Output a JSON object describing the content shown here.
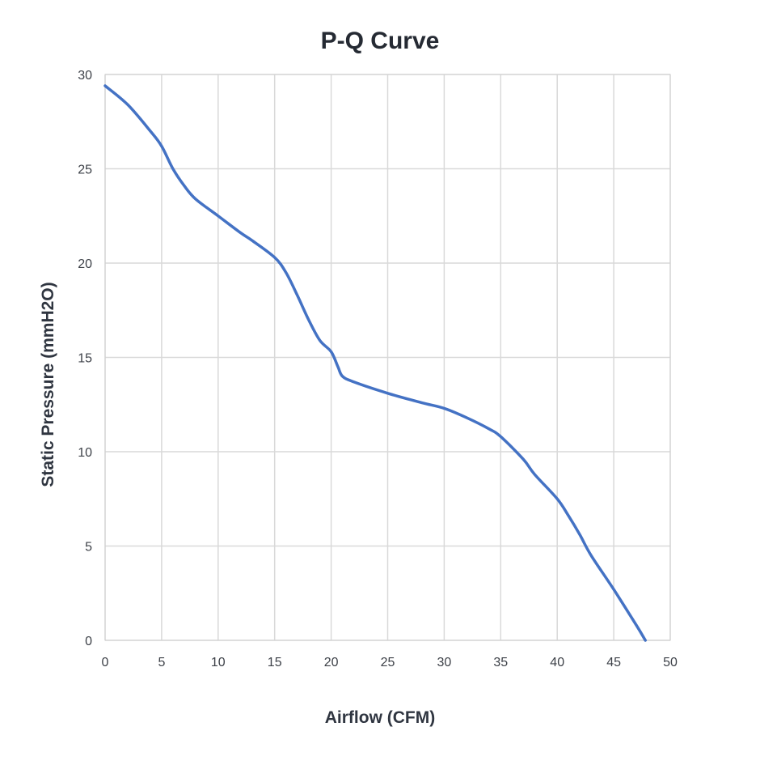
{
  "chart_data": {
    "type": "line",
    "title": "P-Q Curve",
    "xlabel": "Airflow (CFM)",
    "ylabel": "Static Pressure (mmH2O)",
    "xlim": [
      0,
      50
    ],
    "ylim": [
      0,
      30
    ],
    "xticks": [
      0,
      5,
      10,
      15,
      20,
      25,
      30,
      35,
      40,
      45,
      50
    ],
    "yticks": [
      0,
      5,
      10,
      15,
      20,
      25,
      30
    ],
    "x_tick_labels": [
      "0",
      "5",
      "10",
      "15",
      "20",
      "25",
      "30",
      "35",
      "40",
      "45",
      "50"
    ],
    "y_tick_labels": [
      "0",
      "5",
      "10",
      "15",
      "20",
      "25",
      "30"
    ],
    "grid": true,
    "legend": "none",
    "series": [
      {
        "color": "#4472c4",
        "points": [
          [
            0,
            29.4
          ],
          [
            2,
            28.4
          ],
          [
            4,
            27.0
          ],
          [
            5,
            26.2
          ],
          [
            6,
            25.0
          ],
          [
            7,
            24.1
          ],
          [
            8,
            23.4
          ],
          [
            10,
            22.5
          ],
          [
            12,
            21.6
          ],
          [
            13,
            21.2
          ],
          [
            15,
            20.3
          ],
          [
            16,
            19.5
          ],
          [
            17,
            18.3
          ],
          [
            18,
            17.0
          ],
          [
            19,
            15.9
          ],
          [
            20,
            15.3
          ],
          [
            20.6,
            14.5
          ],
          [
            21,
            14.0
          ],
          [
            22,
            13.7
          ],
          [
            25,
            13.1
          ],
          [
            28,
            12.6
          ],
          [
            30,
            12.3
          ],
          [
            32,
            11.8
          ],
          [
            34,
            11.2
          ],
          [
            35,
            10.8
          ],
          [
            37,
            9.6
          ],
          [
            38,
            8.8
          ],
          [
            40,
            7.5
          ],
          [
            41,
            6.6
          ],
          [
            42,
            5.6
          ],
          [
            43,
            4.5
          ],
          [
            45,
            2.7
          ],
          [
            47,
            0.8
          ],
          [
            47.8,
            0
          ]
        ]
      }
    ]
  }
}
